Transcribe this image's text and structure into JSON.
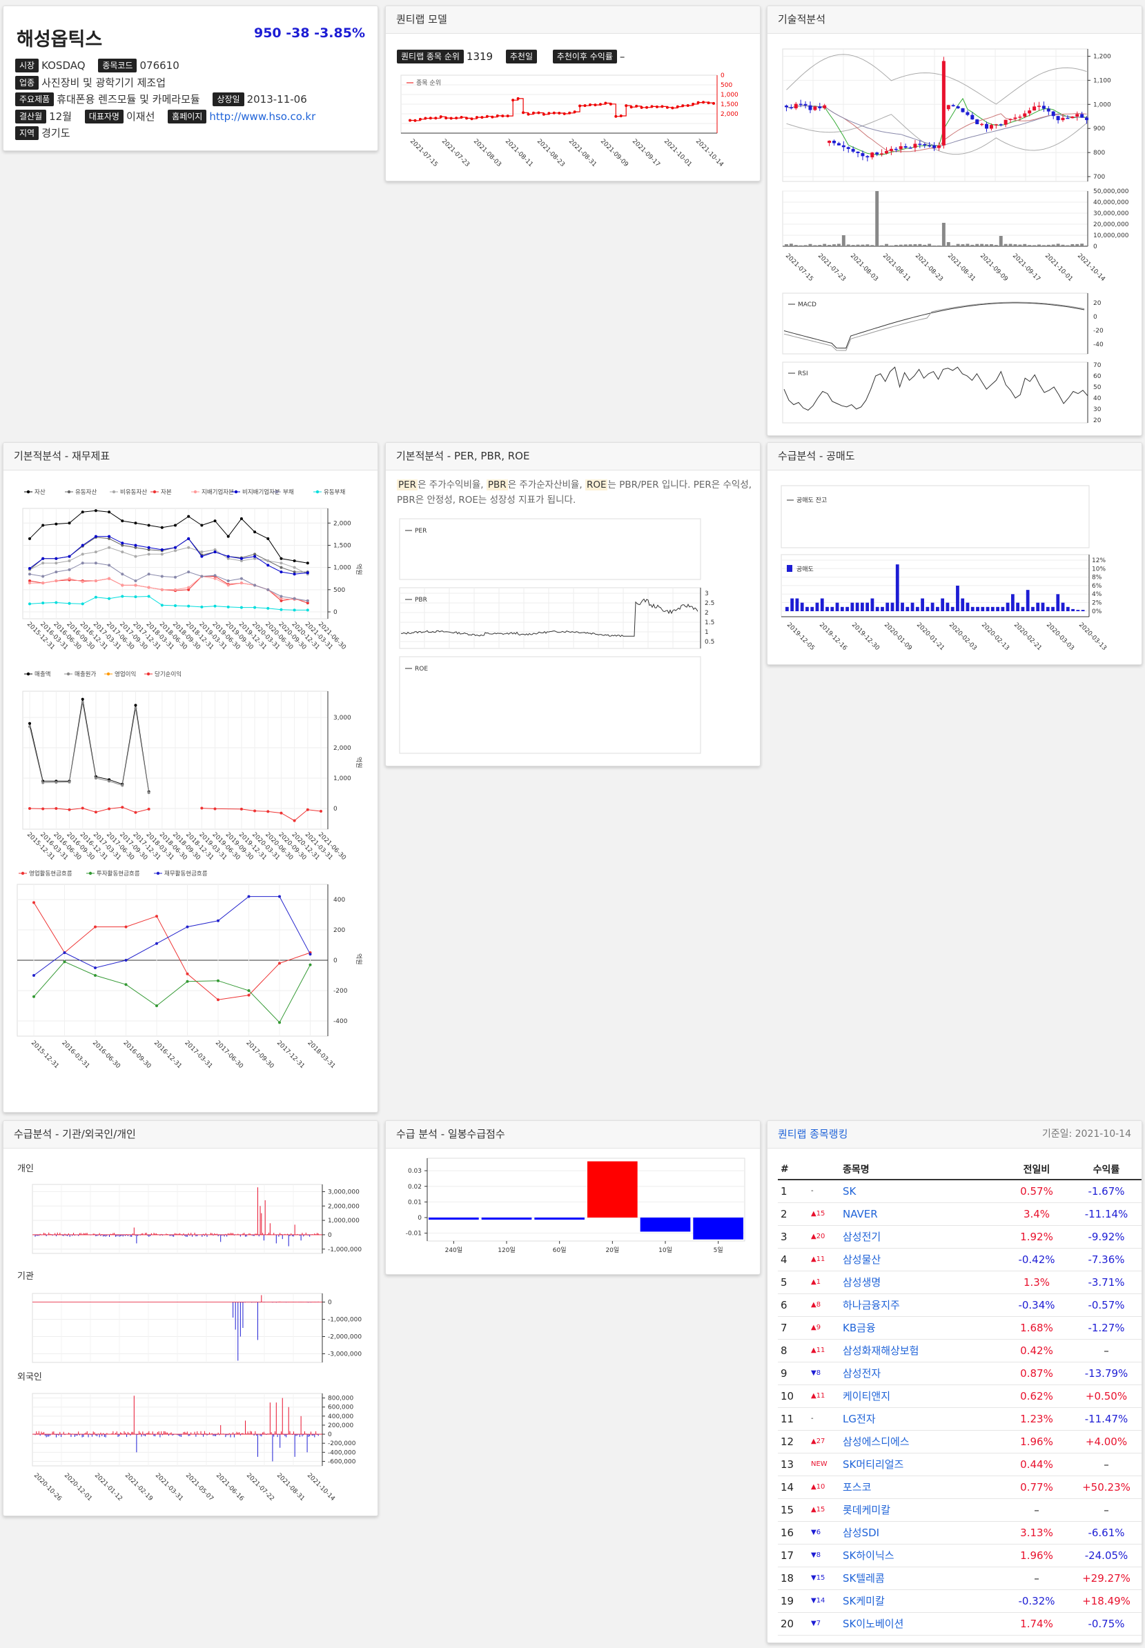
{
  "stock": {
    "name": "해성옵틱스",
    "price_line": "950 -38 -3.85%",
    "market_label": "시장",
    "market": "KOSDAQ",
    "code_label": "종목코드",
    "code": "076610",
    "industry_label": "업종",
    "industry": "사진장비 및 광학기기 제조업",
    "product_label": "주요제품",
    "product": "휴대폰용 렌즈모듈 및 카메라모듈",
    "listing_label": "상장일",
    "listing": "2013-11-06",
    "fiscal_label": "결산월",
    "fiscal": "12월",
    "ceo_label": "대표자명",
    "ceo": "이재선",
    "homepage_label": "홈페이지",
    "homepage": "http://www.hso.co.kr",
    "region_label": "지역",
    "region": "경기도"
  },
  "quant": {
    "title": "퀀티랩 모델",
    "rank_label": "퀀티랩 종목 순위",
    "rank_value": "1319",
    "rec_date_label": "추천일",
    "rec_date": "",
    "rec_return_label": "추천이후 수익률",
    "rec_return": "–",
    "legend": "종목 순위",
    "yticks": [
      "0",
      "500",
      "1,000",
      "1,500",
      "2,000"
    ],
    "xticks": [
      "2021-07-15",
      "2021-07-23",
      "2021-08-03",
      "2021-08-11",
      "2021-08-23",
      "2021-08-31",
      "2021-09-09",
      "2021-09-17",
      "2021-10-01",
      "2021-10-14"
    ]
  },
  "technical": {
    "title": "기술적분석",
    "price_ticks": [
      "1,200",
      "1,100",
      "1,000",
      "900",
      "800",
      "700"
    ],
    "volume_ticks": [
      "50,000,000",
      "40,000,000",
      "30,000,000",
      "20,000,000",
      "10,000,000",
      "0"
    ],
    "xticks": [
      "2021-07-15",
      "2021-07-23",
      "2021-08-03",
      "2021-08-11",
      "2021-08-23",
      "2021-08-31",
      "2021-09-09",
      "2021-09-17",
      "2021-10-01",
      "2021-10-14"
    ],
    "macd_label": "MACD",
    "macd_ticks": [
      "20",
      "0",
      "-20",
      "-40"
    ],
    "rsi_label": "RSI",
    "rsi_ticks": [
      "70",
      "60",
      "50",
      "40",
      "30",
      "20"
    ]
  },
  "fin": {
    "title": "기본적분석 - 재무제표",
    "bs_legend": [
      "자산",
      "유동자산",
      "비유동자산",
      "자본",
      "지배기업자본",
      "비지배기업자본",
      "부채",
      "유동부채"
    ],
    "bs_ticks": [
      "2,000",
      "1,500",
      "1,000",
      "500",
      "0"
    ],
    "unit": "억원",
    "is_legend": [
      "매출액",
      "매출원가",
      "영업이익",
      "당기순이익"
    ],
    "is_ticks": [
      "3,000",
      "2,000",
      "1,000",
      "0"
    ],
    "cf_legend": [
      "영업활동현금흐름",
      "투자활동현금흐름",
      "재무활동현금흐름"
    ],
    "cf_ticks": [
      "400",
      "200",
      "0",
      "-200",
      "-400"
    ],
    "quarters": [
      "2015-12-31",
      "2016-03-31",
      "2016-06-30",
      "2016-09-30",
      "2016-12-31",
      "2017-03-31",
      "2017-06-30",
      "2017-09-30",
      "2017-12-31",
      "2018-03-31",
      "2018-06-30",
      "2018-09-30",
      "2018-12-31",
      "2019-03-31",
      "2019-06-30",
      "2019-09-30",
      "2019-12-31",
      "2020-03-31",
      "2020-06-30",
      "2020-09-30",
      "2020-12-31",
      "2021-03-31",
      "2021-06-30"
    ],
    "cf_quarters": [
      "2015-12-31",
      "2016-03-31",
      "2016-06-30",
      "2016-09-30",
      "2016-12-31",
      "2017-03-31",
      "2017-06-30",
      "2017-09-30",
      "2017-12-31",
      "2018-03-31"
    ]
  },
  "valuation": {
    "title": "기본적분석 - PER, PBR, ROE",
    "desc_per": "PER",
    "desc_1": "은 주가수익비율,",
    "desc_pbr": "PBR",
    "desc_2": "은 주가순자산비율,",
    "desc_roe": "ROE",
    "desc_3": "는 PBR/PER 입니다. PER은 수익성, PBR은 안정성, ROE는 성장성 지표가 됩니다.",
    "per_label": "PER",
    "pbr_label": "PBR",
    "roe_label": "ROE",
    "pbr_ticks": [
      "3",
      "2.5",
      "2",
      "1.5",
      "1",
      "0.5"
    ]
  },
  "short": {
    "title": "수급분석 - 공매도",
    "balance_label": "공매도 잔고",
    "short_label": "공매도",
    "ticks": [
      "12%",
      "10%",
      "8%",
      "6%",
      "4%",
      "2%",
      "0%"
    ],
    "xticks": [
      "2019-12-05",
      "2019-12-16",
      "2019-12-30",
      "2020-01-09",
      "2020-01-21",
      "2020-02-03",
      "2020-02-13",
      "2020-02-21",
      "2020-03-03",
      "2020-03-13"
    ]
  },
  "flow": {
    "title": "수급분석 - 기관/외국인/개인",
    "individual": "개인",
    "institution": "기관",
    "foreign": "외국인",
    "ind_ticks": [
      "3,000,000",
      "2,000,000",
      "1,000,000",
      "0",
      "-1,000,000"
    ],
    "inst_ticks": [
      "0",
      "-1,000,000",
      "-2,000,000",
      "-3,000,000"
    ],
    "for_ticks": [
      "800,000",
      "600,000",
      "400,000",
      "200,000",
      "0",
      "-200,000",
      "-400,000",
      "-600,000"
    ],
    "xticks": [
      "2020-10-26",
      "2020-12-01",
      "2021-01-12",
      "2021-02-19",
      "2021-03-31",
      "2021-05-07",
      "2021-06-16",
      "2021-07-22",
      "2021-08-31",
      "2021-10-14"
    ]
  },
  "score": {
    "title": "수급 분석 - 일봉수급점수",
    "ticks": [
      "0.03",
      "0.02",
      "0.01",
      "0",
      "-0.01"
    ],
    "categories": [
      "240일",
      "120일",
      "60일",
      "20일",
      "10일",
      "5일"
    ]
  },
  "chart_data": {
    "type": "bar",
    "categories": [
      "240일",
      "120일",
      "60일",
      "20일",
      "10일",
      "5일"
    ],
    "values": [
      -0.001,
      -0.001,
      -0.001,
      0.036,
      -0.009,
      -0.014
    ],
    "ylim": [
      -0.015,
      0.038
    ]
  },
  "ranking": {
    "title": "퀀티랩 종목랭킹",
    "ref_date": "기준일: 2021-10-14",
    "headers": [
      "#",
      "종목명",
      "전일비",
      "수익률"
    ],
    "rows": [
      {
        "rank": "1",
        "chg": "-",
        "dir": "none",
        "name": "SK",
        "pct": "0.57%",
        "pct_dir": "up",
        "ret": "-1.67%",
        "ret_dir": "down"
      },
      {
        "rank": "2",
        "chg": "▲15",
        "dir": "up",
        "name": "NAVER",
        "pct": "3.4%",
        "pct_dir": "up",
        "ret": "-11.14%",
        "ret_dir": "down"
      },
      {
        "rank": "3",
        "chg": "▲20",
        "dir": "up",
        "name": "삼성전기",
        "pct": "1.92%",
        "pct_dir": "up",
        "ret": "-9.92%",
        "ret_dir": "down"
      },
      {
        "rank": "4",
        "chg": "▲11",
        "dir": "up",
        "name": "삼성물산",
        "pct": "-0.42%",
        "pct_dir": "down",
        "ret": "-7.36%",
        "ret_dir": "down"
      },
      {
        "rank": "5",
        "chg": "▲1",
        "dir": "up",
        "name": "삼성생명",
        "pct": "1.3%",
        "pct_dir": "up",
        "ret": "-3.71%",
        "ret_dir": "down"
      },
      {
        "rank": "6",
        "chg": "▲8",
        "dir": "up",
        "name": "하나금융지주",
        "pct": "-0.34%",
        "pct_dir": "down",
        "ret": "-0.57%",
        "ret_dir": "down"
      },
      {
        "rank": "7",
        "chg": "▲9",
        "dir": "up",
        "name": "KB금융",
        "pct": "1.68%",
        "pct_dir": "up",
        "ret": "-1.27%",
        "ret_dir": "down"
      },
      {
        "rank": "8",
        "chg": "▲11",
        "dir": "up",
        "name": "삼성화재해상보험",
        "pct": "0.42%",
        "pct_dir": "up",
        "ret": "–",
        "ret_dir": "none"
      },
      {
        "rank": "9",
        "chg": "▼8",
        "dir": "down",
        "name": "삼성전자",
        "pct": "0.87%",
        "pct_dir": "up",
        "ret": "-13.79%",
        "ret_dir": "down"
      },
      {
        "rank": "10",
        "chg": "▲11",
        "dir": "up",
        "name": "케이티앤지",
        "pct": "0.62%",
        "pct_dir": "up",
        "ret": "+0.50%",
        "ret_dir": "up"
      },
      {
        "rank": "11",
        "chg": "-",
        "dir": "none",
        "name": "LG전자",
        "pct": "1.23%",
        "pct_dir": "up",
        "ret": "-11.47%",
        "ret_dir": "down"
      },
      {
        "rank": "12",
        "chg": "▲27",
        "dir": "up",
        "name": "삼성에스디에스",
        "pct": "1.96%",
        "pct_dir": "up",
        "ret": "+4.00%",
        "ret_dir": "up"
      },
      {
        "rank": "13",
        "chg": "NEW",
        "dir": "new",
        "name": "SK머티리얼즈",
        "pct": "0.44%",
        "pct_dir": "up",
        "ret": "–",
        "ret_dir": "none"
      },
      {
        "rank": "14",
        "chg": "▲10",
        "dir": "up",
        "name": "포스코",
        "pct": "0.77%",
        "pct_dir": "up",
        "ret": "+50.23%",
        "ret_dir": "up"
      },
      {
        "rank": "15",
        "chg": "▲15",
        "dir": "up",
        "name": "롯데케미칼",
        "pct": "–",
        "pct_dir": "none",
        "ret": "–",
        "ret_dir": "none"
      },
      {
        "rank": "16",
        "chg": "▼6",
        "dir": "down",
        "name": "삼성SDI",
        "pct": "3.13%",
        "pct_dir": "up",
        "ret": "-6.61%",
        "ret_dir": "down"
      },
      {
        "rank": "17",
        "chg": "▼8",
        "dir": "down",
        "name": "SK하이닉스",
        "pct": "1.96%",
        "pct_dir": "up",
        "ret": "-24.05%",
        "ret_dir": "down"
      },
      {
        "rank": "18",
        "chg": "▼15",
        "dir": "down",
        "name": "SK텔레콤",
        "pct": "–",
        "pct_dir": "none",
        "ret": "+29.27%",
        "ret_dir": "up"
      },
      {
        "rank": "19",
        "chg": "▼14",
        "dir": "down",
        "name": "SK케미칼",
        "pct": "-0.32%",
        "pct_dir": "down",
        "ret": "+18.49%",
        "ret_dir": "up"
      },
      {
        "rank": "20",
        "chg": "▼7",
        "dir": "down",
        "name": "SK이노베이션",
        "pct": "1.74%",
        "pct_dir": "up",
        "ret": "-0.75%",
        "ret_dir": "down"
      }
    ]
  }
}
